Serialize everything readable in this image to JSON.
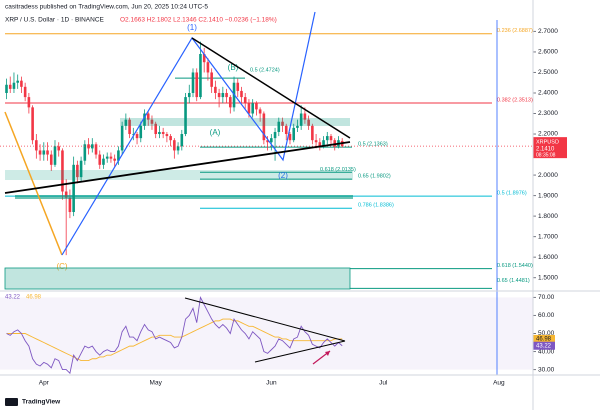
{
  "header": {
    "publisher": "casitradess published on TradingView.com, Jun 20, 2025 10:24 UTC-5",
    "symbol": "XRP / U.S. Dollar · 1D · BINANCE",
    "ohlc": "O2.1663 H2.1802 L2.1346 C2.1410 −0.0236 (−1.18%)"
  },
  "footer": {
    "logo": "TradingView"
  },
  "chart_data": {
    "type": "candlestick",
    "up_color": "#089981",
    "down_color": "#f23645",
    "candles": [
      [
        2.4,
        2.47,
        2.37,
        2.44
      ],
      [
        2.44,
        2.48,
        2.4,
        2.42
      ],
      [
        2.42,
        2.5,
        2.4,
        2.45
      ],
      [
        2.45,
        2.49,
        2.42,
        2.46
      ],
      [
        2.46,
        2.48,
        2.4,
        2.43
      ],
      [
        2.43,
        2.45,
        2.36,
        2.38
      ],
      [
        2.38,
        2.4,
        2.3,
        2.33
      ],
      [
        2.33,
        2.34,
        2.15,
        2.17
      ],
      [
        2.17,
        2.2,
        2.08,
        2.12
      ],
      [
        2.12,
        2.15,
        2.07,
        2.1
      ],
      [
        2.1,
        2.16,
        2.07,
        2.12
      ],
      [
        2.12,
        2.16,
        2.07,
        2.1
      ],
      [
        2.1,
        2.12,
        2.02,
        2.05
      ],
      [
        2.05,
        2.17,
        2.04,
        2.14
      ],
      [
        2.14,
        2.16,
        2.09,
        2.12
      ],
      [
        2.12,
        2.13,
        1.88,
        1.92
      ],
      [
        1.92,
        1.98,
        1.61,
        1.89
      ],
      [
        1.89,
        1.93,
        1.79,
        1.82
      ],
      [
        1.82,
        2.09,
        1.8,
        2.05
      ],
      [
        2.05,
        2.07,
        1.96,
        1.99
      ],
      [
        1.99,
        2.09,
        1.97,
        2.07
      ],
      [
        2.07,
        2.17,
        2.05,
        2.15
      ],
      [
        2.15,
        2.18,
        2.1,
        2.13
      ],
      [
        2.13,
        2.18,
        2.11,
        2.15
      ],
      [
        2.15,
        2.16,
        2.08,
        2.1
      ],
      [
        2.1,
        2.12,
        2.03,
        2.05
      ],
      [
        2.05,
        2.1,
        2.03,
        2.08
      ],
      [
        2.08,
        2.11,
        2.06,
        2.09
      ],
      [
        2.09,
        2.11,
        2.06,
        2.08
      ],
      [
        2.08,
        2.1,
        2.04,
        2.07
      ],
      [
        2.07,
        2.14,
        2.05,
        2.12
      ],
      [
        2.12,
        2.26,
        2.1,
        2.24
      ],
      [
        2.24,
        2.3,
        2.22,
        2.27
      ],
      [
        2.27,
        2.28,
        2.18,
        2.2
      ],
      [
        2.2,
        2.23,
        2.17,
        2.2
      ],
      [
        2.2,
        2.21,
        2.15,
        2.18
      ],
      [
        2.18,
        2.26,
        2.16,
        2.24
      ],
      [
        2.24,
        2.32,
        2.22,
        2.3
      ],
      [
        2.3,
        2.31,
        2.24,
        2.27
      ],
      [
        2.27,
        2.29,
        2.22,
        2.25
      ],
      [
        2.25,
        2.26,
        2.18,
        2.2
      ],
      [
        2.2,
        2.24,
        2.18,
        2.21
      ],
      [
        2.21,
        2.23,
        2.18,
        2.2
      ],
      [
        2.2,
        2.21,
        2.16,
        2.19
      ],
      [
        2.19,
        2.2,
        2.14,
        2.17
      ],
      [
        2.17,
        2.18,
        2.08,
        2.12
      ],
      [
        2.12,
        2.16,
        2.1,
        2.14
      ],
      [
        2.14,
        2.22,
        2.12,
        2.2
      ],
      [
        2.2,
        2.4,
        2.19,
        2.38
      ],
      [
        2.38,
        2.44,
        2.35,
        2.4
      ],
      [
        2.4,
        2.52,
        2.38,
        2.5
      ],
      [
        2.5,
        2.52,
        2.36,
        2.38
      ],
      [
        2.38,
        2.65,
        2.37,
        2.59
      ],
      [
        2.59,
        2.62,
        2.5,
        2.55
      ],
      [
        2.55,
        2.57,
        2.46,
        2.5
      ],
      [
        2.5,
        2.52,
        2.4,
        2.43
      ],
      [
        2.43,
        2.46,
        2.37,
        2.4
      ],
      [
        2.4,
        2.42,
        2.33,
        2.38
      ],
      [
        2.38,
        2.43,
        2.35,
        2.4
      ],
      [
        2.4,
        2.42,
        2.35,
        2.38
      ],
      [
        2.38,
        2.39,
        2.3,
        2.33
      ],
      [
        2.33,
        2.48,
        2.31,
        2.45
      ],
      [
        2.45,
        2.47,
        2.38,
        2.41
      ],
      [
        2.41,
        2.43,
        2.35,
        2.38
      ],
      [
        2.38,
        2.4,
        2.32,
        2.35
      ],
      [
        2.35,
        2.37,
        2.28,
        2.3
      ],
      [
        2.3,
        2.37,
        2.28,
        2.35
      ],
      [
        2.35,
        2.36,
        2.29,
        2.32
      ],
      [
        2.32,
        2.33,
        2.26,
        2.3
      ],
      [
        2.3,
        2.31,
        2.15,
        2.17
      ],
      [
        2.17,
        2.19,
        2.12,
        2.16
      ],
      [
        2.16,
        2.2,
        2.12,
        2.18
      ],
      [
        2.18,
        2.23,
        2.07,
        2.21
      ],
      [
        2.21,
        2.28,
        2.19,
        2.26
      ],
      [
        2.26,
        2.28,
        2.21,
        2.24
      ],
      [
        2.24,
        2.25,
        2.17,
        2.2
      ],
      [
        2.2,
        2.21,
        2.15,
        2.17
      ],
      [
        2.17,
        2.25,
        2.16,
        2.23
      ],
      [
        2.23,
        2.27,
        2.21,
        2.24
      ],
      [
        2.24,
        2.34,
        2.22,
        2.3
      ],
      [
        2.3,
        2.33,
        2.25,
        2.27
      ],
      [
        2.27,
        2.29,
        2.22,
        2.24
      ],
      [
        2.24,
        2.25,
        2.15,
        2.17
      ],
      [
        2.17,
        2.2,
        2.13,
        2.16
      ],
      [
        2.16,
        2.18,
        2.12,
        2.14
      ],
      [
        2.14,
        2.19,
        2.13,
        2.17
      ],
      [
        2.17,
        2.21,
        2.15,
        2.19
      ],
      [
        2.19,
        2.2,
        2.15,
        2.17
      ],
      [
        2.17,
        2.18,
        2.12,
        2.14
      ],
      [
        2.14,
        2.19,
        2.13,
        2.17
      ],
      [
        2.1663,
        2.1802,
        2.1346,
        2.141
      ]
    ],
    "ylim": [
      1.44,
      2.78
    ],
    "yticks": [
      {
        "value": 1.5,
        "label": "1.5000"
      },
      {
        "value": 1.6,
        "label": "1.6000"
      },
      {
        "value": 1.7,
        "label": "1.7000"
      },
      {
        "value": 1.8,
        "label": "1.8000"
      },
      {
        "value": 1.9,
        "label": "1.9000"
      },
      {
        "value": 2.0,
        "label": "2.0000"
      },
      {
        "value": 2.1,
        "label": "2.1000"
      },
      {
        "value": 2.2,
        "label": "2.2000"
      },
      {
        "value": 2.3,
        "label": "2.3000"
      },
      {
        "value": 2.4,
        "label": "2.4000"
      },
      {
        "value": 2.5,
        "label": "2.5000"
      },
      {
        "value": 2.6,
        "label": "2.6000"
      },
      {
        "value": 2.7,
        "label": "2.7000"
      }
    ],
    "xtick_labels": [
      "Apr",
      "May",
      "Jun",
      "Jul",
      "Aug"
    ],
    "price_tag": {
      "symbol": "XRPUSD",
      "price": "2.1410",
      "countdown": "08:35:08"
    },
    "fib_levels": [
      {
        "value": 2.6887,
        "label": "0.236 (2.6887)",
        "color": "#f5a623"
      },
      {
        "value": 2.3513,
        "label": "0.382 (2.3513)",
        "color": "#f23645"
      },
      {
        "value": 2.1363,
        "label": "0.5 (2.1363)",
        "color": "#089981"
      },
      {
        "value": 2.0135,
        "label": "0.618 (2.0135)",
        "color": "#089981"
      },
      {
        "value": 1.9802,
        "label": "0.65 (1.9802)",
        "color": "#089981"
      },
      {
        "value": 1.8976,
        "label": "0.5 (1.8976)",
        "color": "#00bcd4"
      },
      {
        "value": 1.8386,
        "label": "0.786 (1.8386)",
        "color": "#00bcd4"
      },
      {
        "value": 1.544,
        "label": "0.618 (1.5440)",
        "color": "#089981"
      },
      {
        "value": 1.4481,
        "label": "0.65 (1.4481)",
        "color": "#089981"
      },
      {
        "value": 2.4724,
        "label": "0.5 (2.4724)",
        "color": "#089981"
      }
    ],
    "wave_labels": [
      {
        "label": "(1)",
        "color": "#2962ff"
      },
      {
        "label": "(A)",
        "color": "#089981"
      },
      {
        "label": "(B)",
        "color": "#089981"
      },
      {
        "label": "(C)",
        "color": "#f5a623"
      },
      {
        "label": "(2)",
        "color": "#2962ff"
      }
    ],
    "rsi": {
      "color": "#7e57c2",
      "values": [
        50,
        49,
        51,
        52,
        50,
        46,
        43,
        36,
        33,
        32,
        34,
        33,
        31,
        36,
        35,
        30,
        30,
        28,
        38,
        35,
        39,
        43,
        42,
        43,
        40,
        38,
        40,
        41,
        40,
        40,
        43,
        51,
        54,
        48,
        48,
        46,
        51,
        55,
        52,
        51,
        47,
        48,
        47,
        46,
        45,
        42,
        43,
        48,
        58,
        60,
        64,
        56,
        70,
        66,
        62,
        58,
        55,
        53,
        55,
        53,
        50,
        58,
        55,
        52,
        50,
        47,
        51,
        49,
        47,
        40,
        39,
        41,
        43,
        47,
        46,
        44,
        42,
        47,
        48,
        54,
        51,
        49,
        44,
        43,
        42,
        45,
        47,
        45,
        43,
        45,
        43.22
      ]
    },
    "rsi_ma": {
      "color": "#f7b733",
      "values": [
        50,
        50,
        50,
        50,
        50,
        50,
        49,
        48,
        47,
        46,
        45,
        44,
        43,
        42,
        41,
        40,
        39,
        38,
        37,
        36,
        35,
        35,
        35,
        36,
        36,
        37,
        37,
        38,
        38,
        39,
        40,
        41,
        42,
        43,
        43,
        44,
        45,
        46,
        47,
        48,
        48,
        49,
        49,
        49,
        49,
        48,
        48,
        48,
        49,
        50,
        51,
        52,
        53,
        54,
        55,
        56,
        57,
        57,
        58,
        58,
        58,
        57,
        57,
        56,
        55,
        54,
        54,
        53,
        52,
        51,
        50,
        49,
        48,
        48,
        47,
        47,
        46,
        46,
        46,
        46,
        46,
        46,
        46,
        46,
        46,
        46,
        46,
        46,
        47,
        47,
        46.98
      ]
    },
    "rsi_ylim": [
      27,
      73
    ],
    "rsi_yticks": [
      {
        "value": 30,
        "label": "30.00"
      },
      {
        "value": 40,
        "label": "40.00"
      },
      {
        "value": 50,
        "label": "50.00"
      },
      {
        "value": 60,
        "label": "60.00"
      },
      {
        "value": 70,
        "label": "70.00"
      }
    ]
  }
}
